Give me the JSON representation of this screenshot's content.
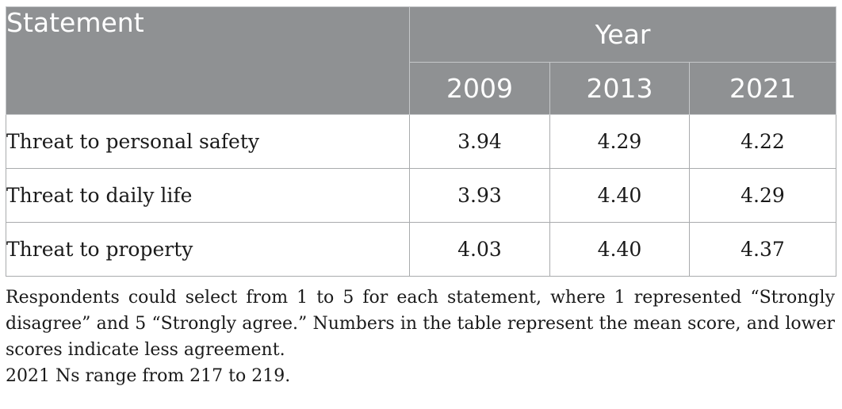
{
  "table": {
    "header": {
      "statement": "Statement",
      "year_group": "Year",
      "years": [
        "2009",
        "2013",
        "2021"
      ]
    },
    "rows": [
      {
        "label": "Threat to personal safety",
        "values": [
          "3.94",
          "4.29",
          "4.22"
        ]
      },
      {
        "label": "Threat to daily life",
        "values": [
          "3.93",
          "4.40",
          "4.29"
        ]
      },
      {
        "label": "Threat to property",
        "values": [
          "4.03",
          "4.40",
          "4.37"
        ]
      }
    ]
  },
  "notes": {
    "scale_note": "Respondents could select from 1 to 5 for each statement, where 1 represented “Strongly disagree” and 5 “Strongly agree.” Numbers in the table represent the mean score, and lower scores indicate less agreement.",
    "n_note": "2021 Ns range from 217 to 219."
  },
  "colors": {
    "header_bg": "#8f9193",
    "header_text": "#ffffff",
    "border": "#a9abad"
  }
}
